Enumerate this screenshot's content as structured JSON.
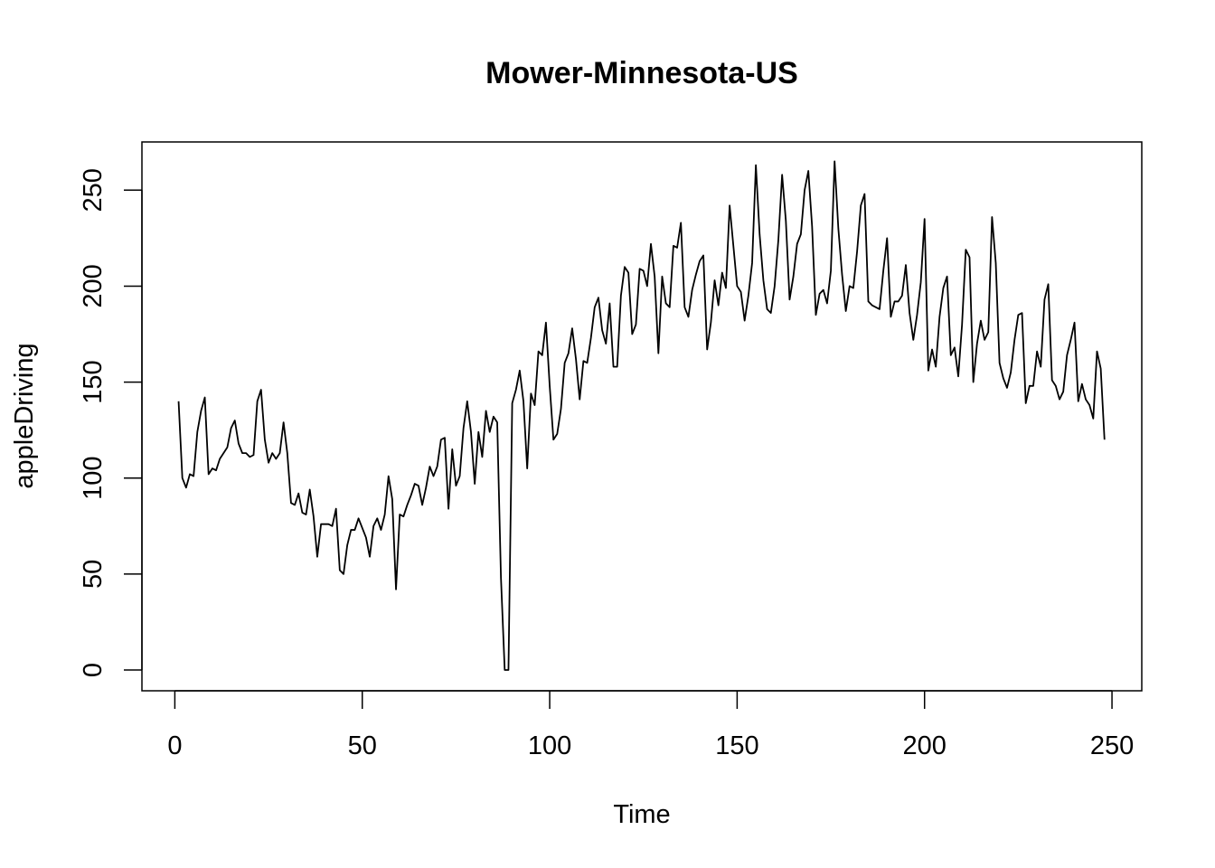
{
  "chart_data": {
    "type": "line",
    "title": "Mower-Minnesota-US",
    "xlabel": "Time",
    "ylabel": "appleDriving",
    "xlim": [
      1,
      248
    ],
    "ylim": [
      0,
      265
    ],
    "x_ticks": [
      0,
      50,
      100,
      150,
      200,
      250
    ],
    "y_ticks": [
      0,
      50,
      100,
      150,
      200,
      250
    ],
    "grid": false,
    "legend": "none",
    "line_color": "#000000",
    "series": [
      {
        "x_start": 1,
        "values": [
          140,
          100,
          95,
          102,
          101,
          124,
          135,
          142,
          102,
          105,
          104,
          110,
          113,
          116,
          126,
          130,
          118,
          113,
          113,
          111,
          112,
          140,
          146,
          120,
          108,
          113,
          110,
          113,
          129,
          113,
          87,
          86,
          92,
          82,
          81,
          94,
          80,
          59,
          76,
          76,
          76,
          75,
          84,
          52,
          50,
          65,
          73,
          73,
          79,
          74,
          69,
          59,
          75,
          79,
          73,
          81,
          101,
          89,
          42,
          81,
          80,
          86,
          91,
          97,
          96,
          86,
          95,
          106,
          101,
          106,
          120,
          121,
          84,
          115,
          96,
          101,
          126,
          140,
          124,
          97,
          124,
          111,
          135,
          124,
          132,
          129,
          48,
          0,
          0,
          139,
          146,
          156,
          140,
          105,
          144,
          138,
          166,
          164,
          181,
          148,
          120,
          123,
          136,
          160,
          165,
          178,
          162,
          141,
          161,
          160,
          173,
          189,
          194,
          177,
          170,
          191,
          158,
          158,
          195,
          210,
          207,
          175,
          180,
          209,
          208,
          200,
          222,
          205,
          165,
          205,
          191,
          189,
          221,
          220,
          233,
          189,
          184,
          198,
          206,
          213,
          216,
          167,
          181,
          203,
          190,
          207,
          199,
          242,
          221,
          200,
          197,
          182,
          195,
          212,
          263,
          227,
          203,
          188,
          186,
          200,
          224,
          258,
          234,
          193,
          205,
          222,
          227,
          250,
          260,
          231,
          185,
          196,
          198,
          191,
          208,
          265,
          230,
          206,
          187,
          200,
          199,
          218,
          242,
          248,
          192,
          190,
          189,
          188,
          208,
          225,
          184,
          192,
          192,
          195,
          211,
          186,
          172,
          185,
          202,
          235,
          156,
          167,
          158,
          184,
          199,
          205,
          164,
          168,
          153,
          180,
          219,
          215,
          150,
          170,
          182,
          172,
          176,
          236,
          212,
          160,
          152,
          147,
          155,
          172,
          185,
          186,
          139,
          148,
          148,
          166,
          158,
          193,
          201,
          151,
          148,
          141,
          145,
          164,
          172,
          181,
          140,
          149,
          141,
          138,
          131,
          166,
          157,
          120
        ]
      }
    ]
  }
}
